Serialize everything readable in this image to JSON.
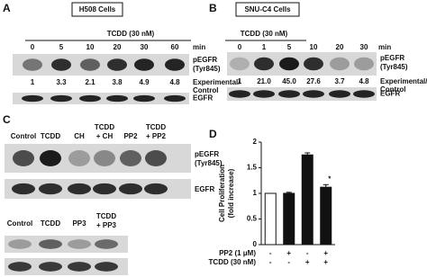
{
  "panel_a": {
    "letter": "A",
    "cells": "H508 Cells",
    "treatment": "TCDD (30 nM)",
    "lanes": [
      "0",
      "5",
      "10",
      "20",
      "30",
      "60"
    ],
    "unit": "min",
    "blot1_label": [
      "pEGFR",
      "(Tyr845)"
    ],
    "ratios": [
      "1",
      "3.3",
      "2.1",
      "3.8",
      "4.9",
      "4.8"
    ],
    "ratio_label": [
      "Experimental/",
      "Control"
    ],
    "blot2_label": "EGFR"
  },
  "panel_b": {
    "letter": "B",
    "cells": "SNU-C4 Cells",
    "treatment": "TCDD (30 nM)",
    "lanes": [
      "0",
      "1",
      "5",
      "10",
      "20",
      "30"
    ],
    "unit": "min",
    "blot1_label": [
      "pEGFR",
      "(Tyr845)"
    ],
    "ratios": [
      "1",
      "21.0",
      "45.0",
      "27.6",
      "3.7",
      "4.8"
    ],
    "ratio_label": [
      "Experimental/",
      "Control"
    ],
    "blot2_label": "EGFR"
  },
  "panel_c": {
    "letter": "C",
    "lanes": [
      [
        "Control"
      ],
      [
        "TCDD"
      ],
      [
        "CH"
      ],
      [
        "TCDD",
        "+ CH"
      ],
      [
        "PP2"
      ],
      [
        "TCDD",
        "+ PP2"
      ]
    ],
    "blot1_label": [
      "pEGFR",
      "(Tyr845)"
    ],
    "blot2_label": "EGFR",
    "lanes2": [
      [
        "Control"
      ],
      [
        "TCDD"
      ],
      [
        "PP3"
      ],
      [
        "TCDD",
        "+ PP3"
      ]
    ]
  },
  "panel_d": {
    "letter": "D"
  },
  "chart_data": {
    "type": "bar",
    "y_label": [
      "Cell Proliferation",
      "(fold increase)"
    ],
    "categories": [
      null,
      null,
      null,
      null
    ],
    "values": [
      1,
      1,
      1.75,
      1.12
    ],
    "errors": [
      0,
      0.02,
      0.04,
      0.05
    ],
    "colors": [
      "#ffffff",
      "#111111",
      "#111111",
      "#111111"
    ],
    "ylim": [
      0,
      2
    ],
    "yticks": [
      0,
      0.5,
      1,
      1.5,
      2
    ],
    "conditions": [
      {
        "label": "PP2 (1 μM)",
        "signs": [
          "-",
          "+",
          "-",
          "+"
        ]
      },
      {
        "label": "TCDD (30 nM)",
        "signs": [
          "-",
          "-",
          "+",
          "+"
        ]
      }
    ],
    "markers": [
      null,
      null,
      null,
      "*"
    ]
  }
}
